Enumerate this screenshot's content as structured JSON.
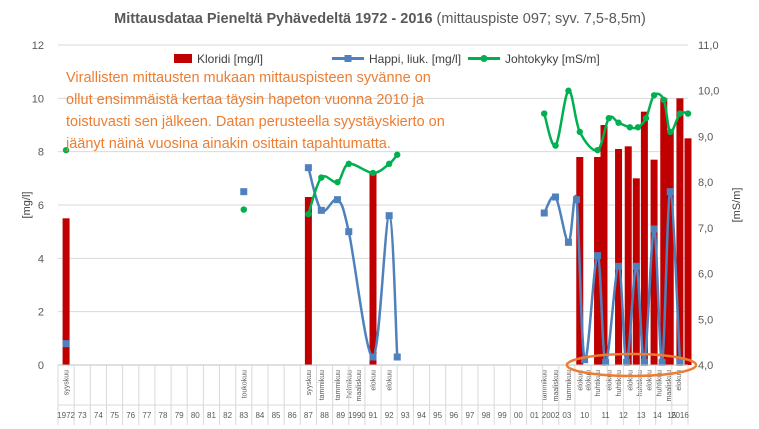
{
  "chart_data": {
    "type": "bar+line",
    "title_bold": "Mittausdataa Pieneltä Pyhävedeltä 1972 - 2016",
    "title_rest": " (mittauspiste 097; syv. 7,5-8,5m)",
    "ylabel": "[mg/l]",
    "y2label": "[mS/m]",
    "ylim": [
      0,
      12
    ],
    "y2lim": [
      4.0,
      11.0
    ],
    "yticks": [
      "0",
      "2",
      "4",
      "6",
      "8",
      "10",
      "12"
    ],
    "y2ticks": [
      "4,0",
      "5,0",
      "6,0",
      "7,0",
      "8,0",
      "9,0",
      "10,0",
      "11,0"
    ],
    "grid": true,
    "legend_position": "top",
    "legend": [
      {
        "label": "Kloridi [mg/l]",
        "color": "#C00000",
        "kind": "bar"
      },
      {
        "label": "Happi, liuk. [mg/l]",
        "color": "#4F81BD",
        "kind": "line"
      },
      {
        "label": "Johtokyky [mS/m]",
        "color": "#00B050",
        "kind": "line"
      }
    ],
    "annotation": [
      "Virallisten mittausten mukaan mittauspisteen syvänne on",
      "ollut ensimmäistä kertaa täysin hapeton vuonna 2010 ja",
      "toistuvasti sen jälkeen. Datan perusteella syystäyskierto on",
      "jäänyt näinä vuosina ainakin osittain tapahtumatta."
    ],
    "year_labels": [
      "1972",
      "73",
      "74",
      "75",
      "76",
      "77",
      "78",
      "79",
      "80",
      "81",
      "82",
      "83",
      "84",
      "85",
      "86",
      "87",
      "88",
      "89",
      "1990",
      "91",
      "92",
      "93",
      "94",
      "95",
      "96",
      "97",
      "98",
      "99",
      "00",
      "01",
      "2002",
      "03",
      "",
      "",
      "",
      "",
      "",
      "",
      "2016"
    ],
    "year_labels_late": [
      "10",
      "11",
      "12",
      "13",
      "14",
      "15"
    ],
    "categories": [
      {
        "label": "syyskuu",
        "pos": 0.5
      },
      {
        "label": "toukokuu",
        "pos": 11.5
      },
      {
        "label": "syyskuu",
        "pos": 15.5
      },
      {
        "label": "tammikuu",
        "pos": 16.3
      },
      {
        "label": "tammikuu",
        "pos": 17.3
      },
      {
        "label": "helmikuu",
        "pos": 18.0
      },
      {
        "label": "maaliskuu",
        "pos": 18.6
      },
      {
        "label": "elokuu",
        "pos": 19.5
      },
      {
        "label": "elokuu",
        "pos": 20.5
      },
      {
        "label": "tammikuu",
        "pos": 30.1
      },
      {
        "label": "maaliskuu",
        "pos": 30.8
      },
      {
        "label": "tammikuu",
        "pos": 31.6
      },
      {
        "label": "elokuu",
        "pos": 32.3
      },
      {
        "label": "elokuu",
        "pos": 32.8
      },
      {
        "label": "huhtikuu",
        "pos": 33.4
      },
      {
        "label": "elokuu",
        "pos": 34.1
      },
      {
        "label": "huhtikuu",
        "pos": 34.7
      },
      {
        "label": "elokuu",
        "pos": 35.4
      },
      {
        "label": "huhtikuu",
        "pos": 36.0
      },
      {
        "label": "elokuu",
        "pos": 36.6
      },
      {
        "label": "huhtikuu",
        "pos": 37.2
      },
      {
        "label": "maaliskuu",
        "pos": 37.8
      },
      {
        "label": "elokuu",
        "pos": 38.4
      }
    ],
    "kloridi": [
      [
        0.5,
        5.5
      ],
      [
        15.5,
        6.3
      ],
      [
        19.5,
        7.2
      ],
      [
        32.3,
        7.8
      ],
      [
        33.4,
        7.8
      ],
      [
        33.8,
        9.0
      ],
      [
        34.7,
        8.1
      ],
      [
        35.3,
        8.2
      ],
      [
        35.8,
        7.0
      ],
      [
        36.3,
        9.5
      ],
      [
        36.9,
        7.7
      ],
      [
        37.5,
        10.0
      ],
      [
        37.9,
        8.8
      ],
      [
        38.5,
        10.0
      ],
      [
        39.0,
        8.5
      ]
    ],
    "happi": [
      [
        [
          0.5,
          0.8
        ]
      ],
      [
        [
          11.5,
          6.5
        ]
      ],
      [
        [
          15.5,
          7.4
        ],
        [
          16.3,
          5.8
        ],
        [
          17.3,
          6.2
        ],
        [
          18.0,
          5.0
        ],
        [
          19.5,
          0.3
        ],
        [
          20.5,
          5.6
        ],
        [
          21.0,
          0.3
        ]
      ],
      [
        [
          30.1,
          5.7
        ],
        [
          30.8,
          6.3
        ],
        [
          31.6,
          4.6
        ],
        [
          32.1,
          6.2
        ],
        [
          32.6,
          0.2
        ],
        [
          33.4,
          4.1
        ],
        [
          33.9,
          0.1
        ],
        [
          34.7,
          3.7
        ],
        [
          35.2,
          0.1
        ],
        [
          35.8,
          3.7
        ],
        [
          36.3,
          0.1
        ],
        [
          36.9,
          5.1
        ],
        [
          37.4,
          0.1
        ],
        [
          37.9,
          6.5
        ],
        [
          38.5,
          0.1
        ]
      ]
    ],
    "johtokyky": [
      [
        [
          0.5,
          8.7
        ]
      ],
      [
        [
          11.5,
          7.4
        ]
      ],
      [
        [
          15.5,
          7.3
        ],
        [
          16.3,
          8.1
        ],
        [
          17.3,
          8.0
        ],
        [
          18.0,
          8.4
        ],
        [
          19.5,
          8.2
        ],
        [
          20.5,
          8.4
        ],
        [
          21.0,
          8.6
        ]
      ],
      [
        [
          30.1,
          9.5
        ],
        [
          30.8,
          8.8
        ],
        [
          31.6,
          10.0
        ],
        [
          32.3,
          9.1
        ],
        [
          33.4,
          8.7
        ],
        [
          34.1,
          9.4
        ],
        [
          34.7,
          9.3
        ],
        [
          35.4,
          9.2
        ],
        [
          35.9,
          9.2
        ],
        [
          36.4,
          9.4
        ],
        [
          36.9,
          9.9
        ],
        [
          37.5,
          9.8
        ],
        [
          37.9,
          9.1
        ],
        [
          38.5,
          9.5
        ],
        [
          39.0,
          9.5
        ]
      ]
    ],
    "x_range": [
      0,
      39
    ],
    "highlight": {
      "shape": "ellipse",
      "color": "#ED7D31",
      "x_from": 31.5,
      "x_to": 39.5,
      "y_center": 0
    }
  }
}
